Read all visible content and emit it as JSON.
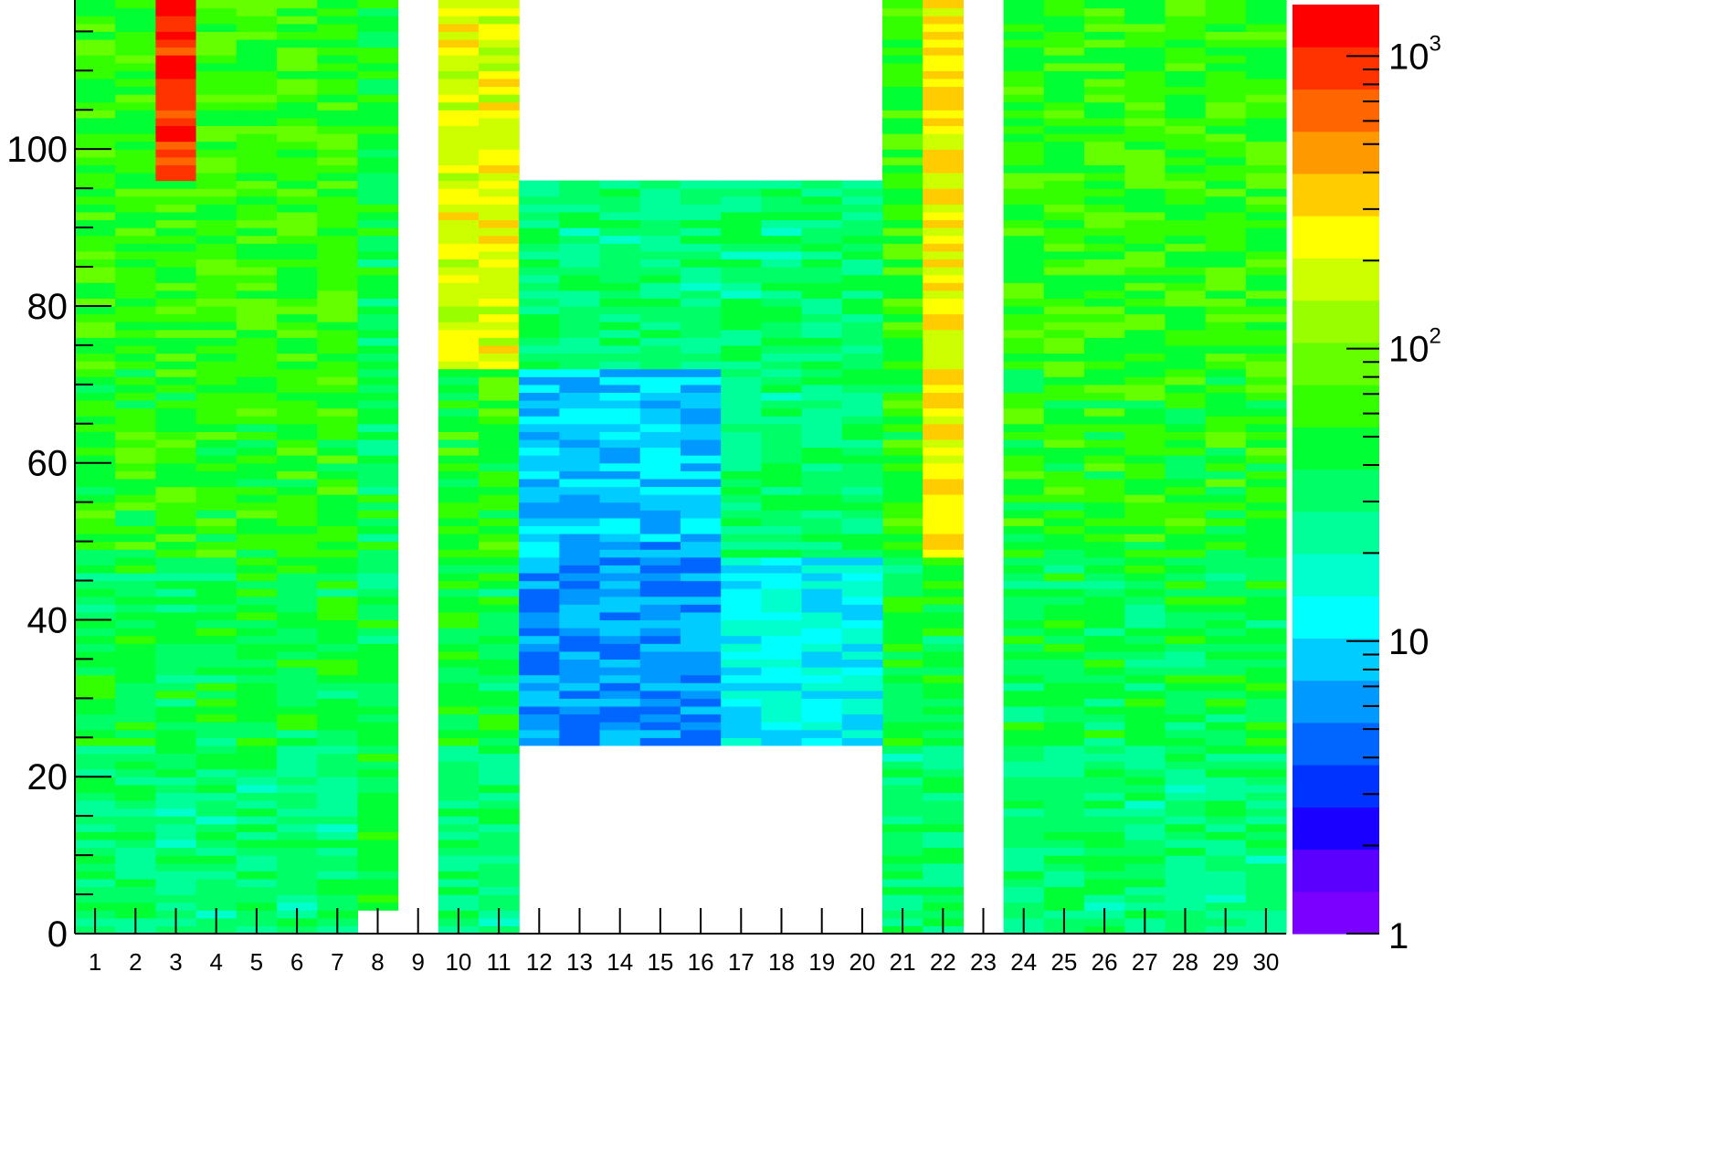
{
  "chart_data": {
    "type": "heatmap",
    "title": "",
    "xlabel": "",
    "ylabel": "",
    "x_categories": [
      "1",
      "2",
      "3",
      "4",
      "5",
      "6",
      "7",
      "8",
      "9",
      "10",
      "11",
      "12",
      "13",
      "14",
      "15",
      "16",
      "17",
      "18",
      "19",
      "20",
      "21",
      "22",
      "23",
      "24",
      "25",
      "26",
      "27",
      "28",
      "29",
      "30"
    ],
    "ylim": [
      0,
      119
    ],
    "y_ticks": [
      0,
      20,
      40,
      60,
      80,
      100
    ],
    "y_tick_labels": [
      "0",
      "20",
      "40",
      "60",
      "80",
      "100"
    ],
    "colorbar": {
      "scale": "log",
      "range": [
        1,
        1500
      ],
      "ticks": [
        {
          "value": 1,
          "base": "1"
        },
        {
          "value": 10,
          "base": "10"
        },
        {
          "value": 100,
          "base": "10",
          "exp": "2"
        },
        {
          "value": 1000,
          "base": "10",
          "exp": "3"
        }
      ],
      "palette": [
        "#7a00ff",
        "#5a00ff",
        "#1a00ff",
        "#0033ff",
        "#0066ff",
        "#0099ff",
        "#00ccff",
        "#00ffff",
        "#00ffcc",
        "#00ff99",
        "#00ff66",
        "#00ff33",
        "#33ff00",
        "#66ff00",
        "#99ff00",
        "#ccff00",
        "#ffff00",
        "#ffcc00",
        "#ff9900",
        "#ff6600",
        "#ff3300",
        "#ff0000"
      ]
    },
    "empty_columns": [
      "9",
      "23"
    ],
    "bands": [
      {
        "columns": [
          "1",
          "2",
          "3",
          "4",
          "5",
          "6",
          "7",
          "10",
          "11",
          "21",
          "22",
          "24",
          "25",
          "26",
          "27",
          "28",
          "29",
          "30"
        ],
        "y_range": [
          0,
          24
        ],
        "typical_value": 30
      },
      {
        "columns": [
          "1",
          "2",
          "3",
          "4",
          "5",
          "6",
          "7",
          "10",
          "11",
          "21",
          "22",
          "24",
          "25",
          "26",
          "27",
          "28",
          "29",
          "30"
        ],
        "y_range": [
          24,
          48
        ],
        "typical_value": 40
      },
      {
        "columns": [
          "1",
          "2",
          "3",
          "4",
          "5",
          "6",
          "7",
          "10",
          "11",
          "21",
          "22",
          "24",
          "25",
          "26",
          "27",
          "28",
          "29",
          "30"
        ],
        "y_range": [
          48,
          72
        ],
        "typical_value": 55
      },
      {
        "columns": [
          "1",
          "2",
          "3",
          "4",
          "5",
          "6",
          "7",
          "10",
          "11",
          "21",
          "22",
          "24",
          "25",
          "26",
          "27",
          "28",
          "29",
          "30"
        ],
        "y_range": [
          72,
          96
        ],
        "typical_value": 60
      },
      {
        "columns": [
          "1",
          "2",
          "3",
          "4",
          "5",
          "6",
          "7",
          "10",
          "11",
          "21",
          "22",
          "24",
          "25",
          "26",
          "27",
          "28",
          "29",
          "30"
        ],
        "y_range": [
          96,
          119
        ],
        "typical_value": 60
      },
      {
        "columns": [
          "12",
          "13",
          "14",
          "15",
          "16"
        ],
        "y_range": [
          24,
          48
        ],
        "typical_value": 6
      },
      {
        "columns": [
          "17",
          "18",
          "19",
          "20"
        ],
        "y_range": [
          24,
          48
        ],
        "typical_value": 12
      },
      {
        "columns": [
          "12",
          "13",
          "14",
          "15",
          "16"
        ],
        "y_range": [
          48,
          72
        ],
        "typical_value": 8
      },
      {
        "columns": [
          "17",
          "18",
          "19",
          "20"
        ],
        "y_range": [
          48,
          72
        ],
        "typical_value": 30
      },
      {
        "columns": [
          "12",
          "13",
          "14",
          "15",
          "16",
          "17",
          "18",
          "19",
          "20"
        ],
        "y_range": [
          72,
          96
        ],
        "typical_value": 30
      },
      {
        "columns": [
          "8"
        ],
        "y_range": [
          3,
          119
        ],
        "typical_value": 40
      },
      {
        "columns": [
          "3"
        ],
        "y_range": [
          96,
          119
        ],
        "typical_value": 1000
      },
      {
        "columns": [
          "22"
        ],
        "y_range": [
          48,
          119
        ],
        "typical_value": 250
      },
      {
        "columns": [
          "10",
          "11"
        ],
        "y_range": [
          72,
          119
        ],
        "typical_value": 200
      }
    ]
  }
}
